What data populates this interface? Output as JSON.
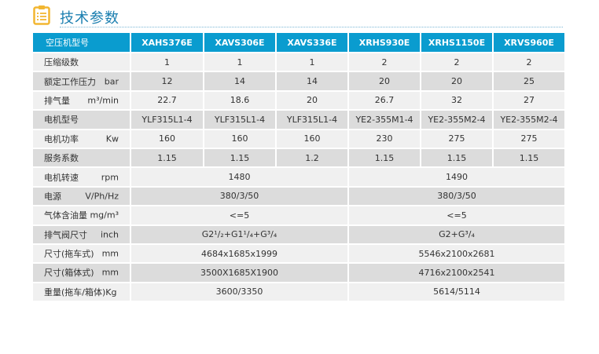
{
  "section": {
    "title": "技术参数",
    "icon": "clipboard-list-icon"
  },
  "colors": {
    "header": "#0a9ccf",
    "title": "#1b7fb0",
    "icon": "#f2b631"
  },
  "table": {
    "header_label": "空压机型号",
    "models": [
      "XAHS376E",
      "XAVS306E",
      "XAVS336E",
      "XRHS930E",
      "XRHS1150E",
      "XRVS960E"
    ],
    "rows": [
      {
        "label": "压缩级数",
        "unit": "",
        "values": [
          "1",
          "1",
          "1",
          "2",
          "2",
          "2"
        ]
      },
      {
        "label": "额定工作压力",
        "unit": "bar",
        "values": [
          "12",
          "14",
          "14",
          "20",
          "20",
          "25"
        ]
      },
      {
        "label": "排气量",
        "unit": "m³/min",
        "values": [
          "22.7",
          "18.6",
          "20",
          "26.7",
          "32",
          "27"
        ]
      },
      {
        "label": "电机型号",
        "unit": "",
        "values": [
          "YLF315L1-4",
          "YLF315L1-4",
          "YLF315L1-4",
          "YE2-355M1-4",
          "YE2-355M2-4",
          "YE2-355M2-4"
        ]
      },
      {
        "label": "电机功率",
        "unit": "Kw",
        "values": [
          "160",
          "160",
          "160",
          "230",
          "275",
          "275"
        ]
      },
      {
        "label": "服务系数",
        "unit": "",
        "values": [
          "1.15",
          "1.15",
          "1.2",
          "1.15",
          "1.15",
          "1.15"
        ]
      },
      {
        "label": "电机转速",
        "unit": "rpm",
        "merged": [
          "1480",
          "1490"
        ]
      },
      {
        "label": "电源",
        "unit": "V/Ph/Hz",
        "merged": [
          "380/3/50",
          "380/3/50"
        ]
      },
      {
        "label": "气体含油量",
        "unit": "mg/m³",
        "merged": [
          "<=5",
          "<=5"
        ]
      },
      {
        "label": "排气阀尺寸",
        "unit": "inch",
        "merged": [
          "G2¹/₂+G1¹/₄+G³/₄",
          "G2+G³/₄"
        ]
      },
      {
        "label": "尺寸(拖车式)",
        "unit": "mm",
        "merged": [
          "4684x1685x1999",
          "5546x2100x2681"
        ]
      },
      {
        "label": "尺寸(箱体式)",
        "unit": "mm",
        "merged": [
          "3500X1685X1900",
          "4716x2100x2541"
        ]
      },
      {
        "label": "重量(拖车/箱体)Kg",
        "unit": "",
        "merged": [
          "3600/3350",
          "5614/5114"
        ]
      }
    ]
  }
}
